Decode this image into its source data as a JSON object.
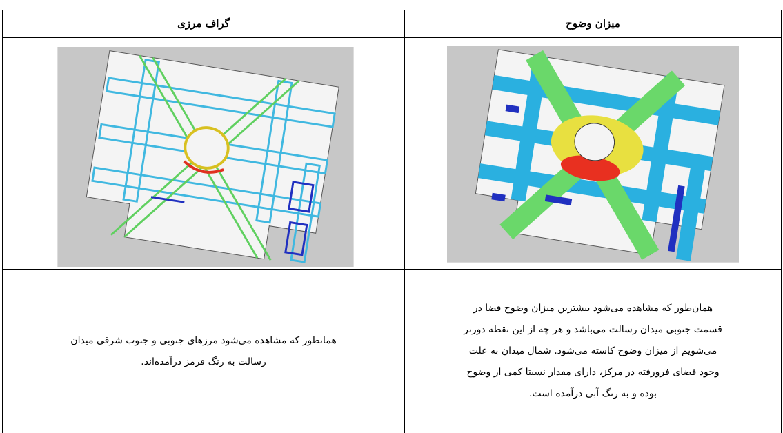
{
  "table": {
    "headers": [
      "میزان وضوح",
      "گراف مرزی"
    ],
    "rows": [
      [
        [
          "همان‌طور که مشاهده می‌شود بیشترین میزان وضوح فضا در",
          "قسمت جنوبی میدان رسالت می‌باشد و هر چه از این نقطه دورتر",
          "می‌شویم از میزان وضوح کاسته می‌شود. شمال میدان به علت",
          "وجود فضای فرورفته در مرکز، دارای مقدار نسبتا کمی از وضوح",
          "بوده و به رنگ آبی درآمده است."
        ],
        [
          "همانطور که مشاهده می‌شود مرزهای جنوبی و جنوب شرقی میدان",
          "رسالت به رنگ قرمز درآمده‌اند."
        ]
      ]
    ]
  }
}
